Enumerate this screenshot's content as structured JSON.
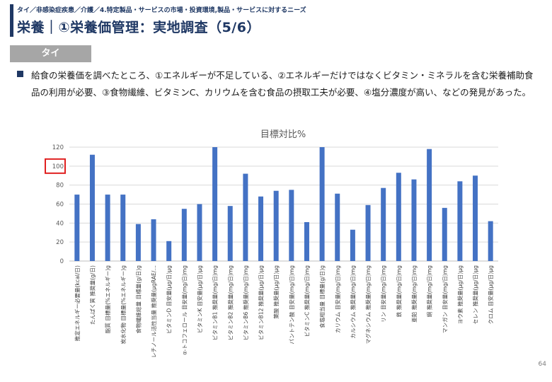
{
  "header": {
    "breadcrumb": "タイ／非感染症疾患／介護／4.特定製品・サービスの市場・投資環境,製品・サービスに対するニーズ",
    "title": "栄養｜①栄養価管理：実地調査（5/6）"
  },
  "country_tag": "タイ",
  "bullet": "給食の栄養価を調べたところ、①エネルギーが不足している、②エネルギーだけではなくビタミン・ミネラルを含む栄養補助食品の利用が必要、③食物繊維、ビタミンC、カリウムを含む食品の摂取工夫が必要、④塩分濃度が高い、などの発見があった。",
  "page_number": "64",
  "colors": {
    "bar": "#4472c4",
    "highlight": "#e02020",
    "navy": "#1f3864",
    "grid": "#d9d9d9"
  },
  "chart_data": {
    "type": "bar",
    "title": "目標対比%",
    "ylim": [
      0,
      120
    ],
    "yticks": [
      0,
      20,
      40,
      60,
      80,
      100,
      120
    ],
    "highlight_tick": 100,
    "grid": true,
    "categories": [
      "推定エネルギー必要量(kcal/日)",
      "たんぱく質 推奨量(g/日)",
      "脂質 目標量(%エネルギー)g",
      "炭水化物 目標量(%エネルギー)g",
      "食物繊維総量 目標量(g/日)g",
      "レチノール活性当量 推奨量(μgRAE/…",
      "ビタミンD 目安量(μg/日)μg",
      "α-トコフェロール 目安量(mg/日)mg",
      "ビタミンK 目安量(μg/日)μg",
      "ビタミンB1 推奨量(mg/日)mg",
      "ビタミンB2 推奨量(mg/日)mg",
      "ビタミンB6 推奨量(mg/日)mg",
      "ビタミンB12 推奨量(μg/日)μg",
      "葉酸 推奨量(μg/日)μg",
      "パントテン酸 目安量(mg/日)mg",
      "ビタミンC 推奨量(mg/日)mg",
      "食塩相当量 目標量(g/日)g",
      "カリウム 目安量(mg/日)mg",
      "カルシウム 推奨量(mg/日)mg",
      "マグネシウム 推奨量(mg/日)mg",
      "リン 目安量(mg/日)mg",
      "鉄 推奨量(mg/日)mg",
      "亜鉛 推奨量(mg/日)mg",
      "銅 推奨量(mg/日)mg",
      "マンガン 目安量(mg/日)mg",
      "ヨウ素 推奨量(μg/日)μg",
      "セレン 推奨量(μg/日)μg",
      "クロム 目安量(μg/日)μg"
    ],
    "values": [
      70,
      112,
      70,
      70,
      39,
      44,
      21,
      55,
      60,
      120,
      58,
      92,
      68,
      74,
      75,
      41,
      120,
      71,
      33,
      59,
      77,
      93,
      86,
      118,
      56,
      84,
      90,
      42
    ]
  }
}
